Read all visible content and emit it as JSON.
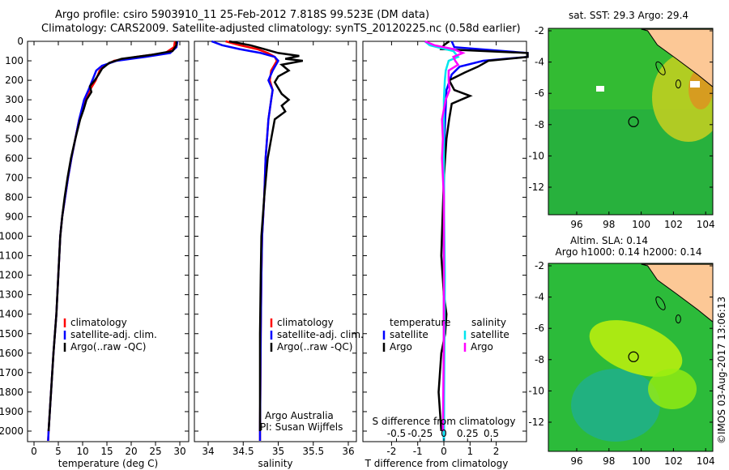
{
  "title_line1": "Argo profile: csiro 5903910_11 25-Feb-2012 7.818S 99.523E (DM data)",
  "title_line2": "Climatology: CARS2009. Satellite-adjusted climatology: synTS_20120225.nc (0.58d earlier)",
  "colors": {
    "climatology": "#ff0000",
    "satellite": "#0000ff",
    "argo": "#000000",
    "sal_satellite": "#00e5ee",
    "sal_argo": "#ff00ff",
    "land": "#fcc896"
  },
  "chart_data": [
    {
      "type": "line",
      "xlabel": "temperature (deg C)",
      "ylabel": "",
      "xlim": [
        -0.5,
        31.5
      ],
      "ylim": [
        2050,
        0
      ],
      "xticks": [
        0,
        5,
        10,
        15,
        20,
        25,
        30
      ],
      "yticks": [
        0,
        100,
        200,
        300,
        400,
        500,
        600,
        700,
        800,
        900,
        1000,
        1100,
        1200,
        1300,
        1400,
        1500,
        1600,
        1700,
        1800,
        1900,
        2000
      ],
      "legend": [
        "climatology",
        "satellite-adj. clim.",
        "Argo(..raw -QC)"
      ],
      "series": [
        {
          "name": "climatology",
          "color": "#ff0000",
          "depth": [
            0,
            30,
            60,
            80,
            100,
            125,
            150,
            200,
            250,
            300,
            400,
            500,
            600,
            700,
            800,
            900,
            1000,
            1200,
            1400,
            1600,
            1800,
            2000,
            2050
          ],
          "values": [
            29,
            28.8,
            27,
            21,
            16.5,
            14.5,
            13.5,
            12.7,
            11.5,
            10.5,
            9.3,
            8.5,
            7.7,
            7,
            6.4,
            5.8,
            5.4,
            5,
            4.6,
            4,
            3.5,
            3,
            2.9
          ]
        },
        {
          "name": "satellite-adj. clim.",
          "color": "#0000ff",
          "depth": [
            0,
            30,
            60,
            80,
            100,
            125,
            150,
            200,
            250,
            300,
            400,
            500,
            600,
            700,
            800,
            900,
            1000,
            1200,
            1400,
            1600,
            1800,
            2000,
            2050
          ],
          "values": [
            29.5,
            29.3,
            28,
            23,
            17,
            14,
            12.8,
            12,
            11.2,
            10.3,
            9.3,
            8.5,
            7.7,
            7,
            6.4,
            5.8,
            5.4,
            5,
            4.6,
            4,
            3.5,
            3,
            2.9
          ]
        },
        {
          "name": "Argo(..raw -QC)",
          "color": "#000000",
          "depth": [
            0,
            20,
            50,
            70,
            90,
            110,
            140,
            170,
            200,
            230,
            260,
            300,
            350,
            400,
            500,
            600,
            700,
            800,
            900,
            1000,
            1200,
            1400,
            1600,
            1800,
            2000
          ],
          "values": [
            29.3,
            29.3,
            28.5,
            24,
            18,
            15.5,
            14,
            13.3,
            12.5,
            11.5,
            11.8,
            10.8,
            10.2,
            9.5,
            8.5,
            7.6,
            6.9,
            6.3,
            5.8,
            5.4,
            5,
            4.6,
            4,
            3.5,
            3
          ]
        }
      ]
    },
    {
      "type": "line",
      "xlabel": "salinity",
      "xlim": [
        33.8,
        36.1
      ],
      "ylim": [
        2050,
        0
      ],
      "xticks": [
        34,
        34.5,
        35,
        35.5,
        36
      ],
      "legend": [
        "climatology",
        "satellite-adj. clim.",
        "Argo(..raw -QC)"
      ],
      "annotation": [
        "Argo Australia",
        "PI: Susan Wijffels"
      ],
      "series": [
        {
          "name": "climatology",
          "color": "#ff0000",
          "depth": [
            0,
            20,
            40,
            60,
            80,
            100,
            150,
            200,
            250,
            300,
            400,
            600,
            800,
            1000,
            1200,
            1500,
            2000,
            2050
          ],
          "values": [
            34.25,
            34.45,
            34.7,
            34.85,
            34.95,
            34.98,
            34.9,
            34.88,
            34.92,
            34.9,
            34.86,
            34.82,
            34.8,
            34.77,
            34.76,
            34.75,
            34.74,
            34.74
          ]
        },
        {
          "name": "satellite-adj. clim.",
          "color": "#0000ff",
          "depth": [
            0,
            20,
            40,
            60,
            80,
            100,
            150,
            200,
            250,
            300,
            400,
            600,
            800,
            1000,
            1200,
            1500,
            2000,
            2050
          ],
          "values": [
            34.05,
            34.2,
            34.45,
            34.75,
            34.95,
            35.0,
            34.92,
            34.86,
            34.92,
            34.9,
            34.86,
            34.82,
            34.8,
            34.77,
            34.76,
            34.75,
            34.74,
            34.74
          ]
        },
        {
          "name": "Argo(..raw -QC)",
          "color": "#000000",
          "depth": [
            0,
            20,
            40,
            60,
            75,
            90,
            100,
            120,
            150,
            180,
            210,
            240,
            270,
            300,
            330,
            360,
            400,
            500,
            600,
            800,
            1000,
            1200,
            1500,
            1800,
            2000
          ],
          "values": [
            34.3,
            34.6,
            34.8,
            35.0,
            35.3,
            35.1,
            35.35,
            35.05,
            35.15,
            35.0,
            34.95,
            35.0,
            35.05,
            35.15,
            35.05,
            35.1,
            34.95,
            34.9,
            34.85,
            34.8,
            34.76,
            34.75,
            34.74,
            34.74,
            34.74
          ]
        }
      ]
    },
    {
      "type": "line",
      "xlabel": "T difference from climatology",
      "xlabel2": "S difference from climatology",
      "xlim": [
        -3.0,
        3.2
      ],
      "ylim": [
        2050,
        0
      ],
      "xticks": [
        -2,
        -1,
        0,
        1,
        2
      ],
      "xticks2": [
        -0.5,
        -0.25,
        0,
        0.25,
        0.5
      ],
      "legend_headers": [
        "temperature",
        "salinity"
      ],
      "legend": [
        "satellite",
        "Argo",
        "satellite",
        "Argo"
      ],
      "series": [
        {
          "name": "temperature satellite",
          "color": "#0000ff",
          "quantity": "T",
          "depth": [
            0,
            30,
            60,
            80,
            100,
            130,
            170,
            250,
            400,
            600,
            1000,
            2000,
            2050
          ],
          "values": [
            0.3,
            0.4,
            3.2,
            3.2,
            1.5,
            0.6,
            0.3,
            0.1,
            0.05,
            0,
            0,
            0,
            0
          ]
        },
        {
          "name": "temperature Argo",
          "color": "#000000",
          "quantity": "T",
          "depth": [
            0,
            20,
            40,
            60,
            80,
            100,
            130,
            160,
            200,
            250,
            280,
            320,
            400,
            500,
            600,
            700,
            900,
            1100,
            1300,
            1400,
            1500,
            1600,
            1800,
            2000
          ],
          "values": [
            0.2,
            0,
            -0.1,
            3.2,
            3.2,
            1.7,
            1.3,
            0.8,
            0.2,
            0.4,
            1.0,
            0.3,
            0.2,
            0.1,
            0.05,
            0,
            -0.05,
            -0.1,
            0,
            0.1,
            0.05,
            -0.1,
            -0.2,
            -0.1
          ]
        },
        {
          "name": "salinity satellite",
          "color": "#00e5ee",
          "quantity": "S",
          "depth": [
            0,
            20,
            50,
            80,
            100,
            150,
            200,
            300,
            500,
            800,
            1200,
            2000,
            2050
          ],
          "values": [
            -0.2,
            -0.15,
            0.1,
            0.15,
            0.05,
            0.02,
            0.01,
            0,
            0,
            0,
            0.01,
            0,
            0
          ]
        },
        {
          "name": "salinity Argo",
          "color": "#ff00ff",
          "quantity": "S",
          "depth": [
            0,
            20,
            40,
            60,
            80,
            100,
            120,
            150,
            200,
            250,
            300,
            400,
            500,
            600,
            800,
            1000,
            1500,
            2000
          ],
          "values": [
            -0.2,
            -0.1,
            0.1,
            0.2,
            0.1,
            0.12,
            0.15,
            0.05,
            0.05,
            0.06,
            0.02,
            -0.02,
            -0.01,
            -0.02,
            0,
            0,
            0,
            -0.01
          ]
        }
      ]
    },
    {
      "type": "heatmap",
      "title": "sat. SST: 29.3  Argo: 29.4",
      "xticks": [
        96,
        98,
        100,
        102,
        104
      ],
      "yticks": [
        -2,
        -4,
        -6,
        -8,
        -10,
        -12
      ],
      "xlim": [
        94.4,
        104.6
      ],
      "ylim": [
        -13.8,
        -1.9
      ],
      "marker": {
        "lon": 99.523,
        "lat": -7.818
      }
    },
    {
      "type": "heatmap",
      "title": "Altim. SLA: 0.14",
      "subtitle": "Argo h1000: 0.14 h2000: 0.14",
      "xticks": [
        96,
        98,
        100,
        102,
        104
      ],
      "yticks": [
        -2,
        -4,
        -6,
        -8,
        -10,
        -12
      ],
      "xlim": [
        94.4,
        104.6
      ],
      "ylim": [
        -13.8,
        -1.9
      ],
      "marker": {
        "lon": 99.523,
        "lat": -7.818
      }
    }
  ],
  "credit": "©IMOS 03-Aug-2017 13:06:13"
}
